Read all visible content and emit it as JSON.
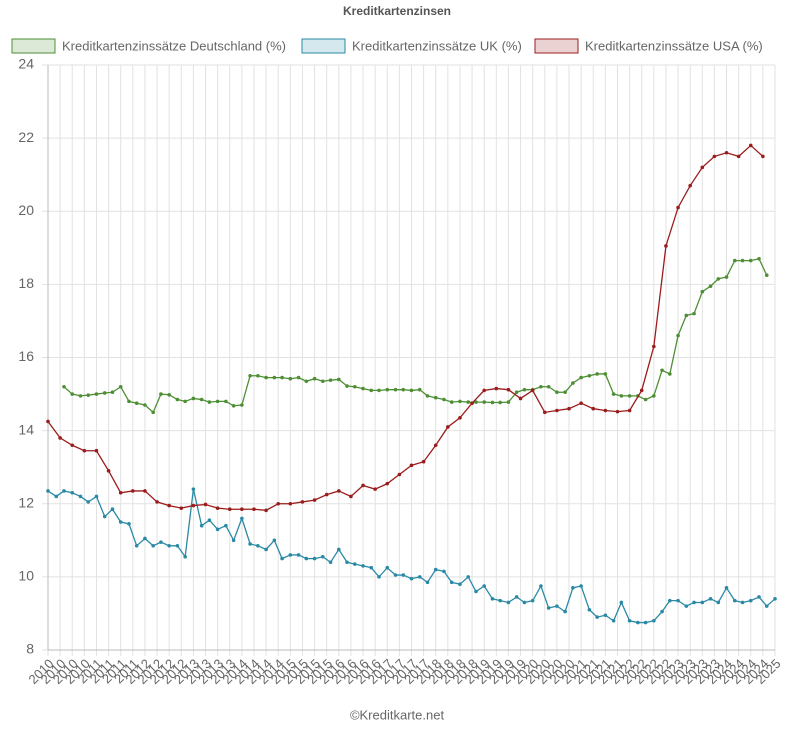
{
  "chart_data": {
    "type": "line",
    "title": "Kreditkartenzinsen",
    "source": "©Kreditkarte.net",
    "xlim": [
      2010,
      2025
    ],
    "ylim": [
      8,
      24
    ],
    "yticks": [
      8,
      10,
      12,
      14,
      16,
      18,
      20,
      22,
      24
    ],
    "grid": true,
    "legend": "top",
    "xticks": [
      2010,
      {
        "value": 2010.25,
        "label": "2010"
      },
      {
        "value": 2010.5,
        "label": "2010"
      },
      {
        "value": 2010.75,
        "label": "2010"
      },
      2011,
      {
        "value": 2011.25,
        "label": "2011"
      },
      {
        "value": 2011.5,
        "label": "2011"
      },
      {
        "value": 2011.75,
        "label": "2011"
      },
      2012,
      {
        "value": 2012.25,
        "label": "2012"
      },
      {
        "value": 2012.5,
        "label": "2012"
      },
      {
        "value": 2012.75,
        "label": "2012"
      },
      2013,
      {
        "value": 2013.25,
        "label": "2013"
      },
      {
        "value": 2013.5,
        "label": "2013"
      },
      {
        "value": 2013.75,
        "label": "2013"
      },
      2014,
      {
        "value": 2014.25,
        "label": "2014"
      },
      {
        "value": 2014.5,
        "label": "2014"
      },
      {
        "value": 2014.75,
        "label": "2014"
      },
      2015,
      {
        "value": 2015.25,
        "label": "2015"
      },
      {
        "value": 2015.5,
        "label": "2015"
      },
      {
        "value": 2015.75,
        "label": "2015"
      },
      2016,
      {
        "value": 2016.25,
        "label": "2016"
      },
      {
        "value": 2016.5,
        "label": "2016"
      },
      {
        "value": 2016.75,
        "label": "2016"
      },
      2017,
      {
        "value": 2017.25,
        "label": "2017"
      },
      {
        "value": 2017.5,
        "label": "2017"
      },
      {
        "value": 2017.75,
        "label": "2017"
      },
      2018,
      {
        "value": 2018.25,
        "label": "2018"
      },
      {
        "value": 2018.5,
        "label": "2018"
      },
      {
        "value": 2018.75,
        "label": "2018"
      },
      2019,
      {
        "value": 2019.25,
        "label": "2019"
      },
      {
        "value": 2019.5,
        "label": "2019"
      },
      {
        "value": 2019.75,
        "label": "2019"
      },
      2020,
      {
        "value": 2020.25,
        "label": "2020"
      },
      {
        "value": 2020.5,
        "label": "2020"
      },
      {
        "value": 2020.75,
        "label": "2020"
      },
      2021,
      {
        "value": 2021.25,
        "label": "2021"
      },
      {
        "value": 2021.5,
        "label": "2021"
      },
      {
        "value": 2021.75,
        "label": "2021"
      },
      2022,
      {
        "value": 2022.25,
        "label": "2022"
      },
      {
        "value": 2022.5,
        "label": "2022"
      },
      {
        "value": 2022.75,
        "label": "2022"
      },
      2023,
      {
        "value": 2023.25,
        "label": "2023"
      },
      {
        "value": 2023.5,
        "label": "2023"
      },
      {
        "value": 2023.75,
        "label": "2023"
      },
      2024,
      {
        "value": 2024.25,
        "label": "2024"
      },
      {
        "value": 2024.5,
        "label": "2024"
      },
      {
        "value": 2024.75,
        "label": "2024"
      },
      2025
    ],
    "series": [
      {
        "name": "Kreditkartenzinssätze Deutschland (%)",
        "color": "#4e8f35",
        "x": [
          2010.33,
          2010.5,
          2010.67,
          2010.83,
          2011,
          2011.17,
          2011.33,
          2011.5,
          2011.67,
          2011.83,
          2012,
          2012.17,
          2012.33,
          2012.5,
          2012.67,
          2012.83,
          2013,
          2013.17,
          2013.33,
          2013.5,
          2013.67,
          2013.83,
          2014,
          2014.17,
          2014.33,
          2014.5,
          2014.67,
          2014.83,
          2015,
          2015.17,
          2015.33,
          2015.5,
          2015.67,
          2015.83,
          2016,
          2016.17,
          2016.33,
          2016.5,
          2016.67,
          2016.83,
          2017,
          2017.17,
          2017.33,
          2017.5,
          2017.67,
          2017.83,
          2018,
          2018.17,
          2018.33,
          2018.5,
          2018.67,
          2018.83,
          2019,
          2019.17,
          2019.33,
          2019.5,
          2019.67,
          2019.83,
          2020,
          2020.17,
          2020.33,
          2020.5,
          2020.67,
          2020.83,
          2021,
          2021.17,
          2021.33,
          2021.5,
          2021.67,
          2021.83,
          2022,
          2022.17,
          2022.33,
          2022.5,
          2022.67,
          2022.83,
          2023,
          2023.17,
          2023.33,
          2023.5,
          2023.67,
          2023.83,
          2024,
          2024.17,
          2024.33,
          2024.5,
          2024.67,
          2024.83
        ],
        "values": [
          15.2,
          15.0,
          14.95,
          14.97,
          15.0,
          15.03,
          15.05,
          15.2,
          14.8,
          14.75,
          14.7,
          14.5,
          15.0,
          14.98,
          14.85,
          14.8,
          14.88,
          14.85,
          14.78,
          14.8,
          14.8,
          14.68,
          14.7,
          15.5,
          15.5,
          15.45,
          15.45,
          15.45,
          15.42,
          15.45,
          15.35,
          15.42,
          15.35,
          15.38,
          15.4,
          15.22,
          15.2,
          15.15,
          15.1,
          15.1,
          15.12,
          15.12,
          15.12,
          15.1,
          15.12,
          14.95,
          14.9,
          14.85,
          14.78,
          14.8,
          14.78,
          14.78,
          14.78,
          14.77,
          14.77,
          14.78,
          15.05,
          15.12,
          15.12,
          15.2,
          15.2,
          15.05,
          15.05,
          15.3,
          15.45,
          15.5,
          15.55,
          15.55,
          15.0,
          14.95,
          14.95,
          14.95,
          14.85,
          14.95,
          15.65,
          15.55,
          16.6,
          17.15,
          17.2,
          17.8,
          17.95,
          18.15,
          18.2,
          18.65,
          18.65,
          18.65,
          18.7,
          18.25
        ]
      },
      {
        "name": "Kreditkartenzinssätze UK (%)",
        "color": "#2a8aa5",
        "x": [
          2010,
          2010.17,
          2010.33,
          2010.5,
          2010.67,
          2010.83,
          2011,
          2011.17,
          2011.33,
          2011.5,
          2011.67,
          2011.83,
          2012,
          2012.17,
          2012.33,
          2012.5,
          2012.67,
          2012.83,
          2013,
          2013.17,
          2013.33,
          2013.5,
          2013.67,
          2013.83,
          2014,
          2014.17,
          2014.33,
          2014.5,
          2014.67,
          2014.83,
          2015,
          2015.17,
          2015.33,
          2015.5,
          2015.67,
          2015.83,
          2016,
          2016.17,
          2016.33,
          2016.5,
          2016.67,
          2016.83,
          2017,
          2017.17,
          2017.33,
          2017.5,
          2017.67,
          2017.83,
          2018,
          2018.17,
          2018.33,
          2018.5,
          2018.67,
          2018.83,
          2019,
          2019.17,
          2019.33,
          2019.5,
          2019.67,
          2019.83,
          2020,
          2020.17,
          2020.33,
          2020.5,
          2020.67,
          2020.83,
          2021,
          2021.17,
          2021.33,
          2021.5,
          2021.67,
          2021.83,
          2022,
          2022.17,
          2022.33,
          2022.5,
          2022.67,
          2022.83,
          2023,
          2023.17,
          2023.33,
          2023.5,
          2023.67,
          2023.83,
          2024,
          2024.17,
          2024.33,
          2024.5,
          2024.67,
          2024.83,
          2025
        ],
        "values": [
          12.35,
          12.2,
          12.35,
          12.3,
          12.2,
          12.05,
          12.2,
          11.65,
          11.85,
          11.5,
          11.45,
          10.85,
          11.05,
          10.85,
          10.95,
          10.85,
          10.85,
          10.55,
          12.4,
          11.4,
          11.55,
          11.3,
          11.4,
          11.0,
          11.6,
          10.9,
          10.85,
          10.75,
          11.0,
          10.5,
          10.6,
          10.6,
          10.5,
          10.5,
          10.55,
          10.4,
          10.75,
          10.4,
          10.35,
          10.3,
          10.25,
          10.0,
          10.25,
          10.05,
          10.05,
          9.95,
          10.0,
          9.85,
          10.2,
          10.15,
          9.85,
          9.8,
          10.0,
          9.6,
          9.75,
          9.4,
          9.35,
          9.3,
          9.45,
          9.3,
          9.35,
          9.75,
          9.15,
          9.2,
          9.05,
          9.7,
          9.75,
          9.1,
          8.9,
          8.95,
          8.8,
          9.3,
          8.8,
          8.75,
          8.75,
          8.8,
          9.05,
          9.35,
          9.35,
          9.2,
          9.3,
          9.3,
          9.4,
          9.3,
          9.7,
          9.35,
          9.3,
          9.35,
          9.45,
          9.2,
          9.4
        ]
      },
      {
        "name": "Kreditkartenzinssätze USA (%)",
        "color": "#9b1c1c",
        "x": [
          2010,
          2010.25,
          2010.5,
          2010.75,
          2011,
          2011.25,
          2011.5,
          2011.75,
          2012,
          2012.25,
          2012.5,
          2012.75,
          2013,
          2013.25,
          2013.5,
          2013.75,
          2014,
          2014.25,
          2014.5,
          2014.75,
          2015,
          2015.25,
          2015.5,
          2015.75,
          2016,
          2016.25,
          2016.5,
          2016.75,
          2017,
          2017.25,
          2017.5,
          2017.75,
          2018,
          2018.25,
          2018.5,
          2018.75,
          2019,
          2019.25,
          2019.5,
          2019.75,
          2020,
          2020.25,
          2020.5,
          2020.75,
          2021,
          2021.25,
          2021.5,
          2021.75,
          2022,
          2022.25,
          2022.5,
          2022.75,
          2023,
          2023.25,
          2023.5,
          2023.75,
          2024,
          2024.25,
          2024.5,
          2024.75
        ],
        "values": [
          14.25,
          13.8,
          13.6,
          13.45,
          13.45,
          12.9,
          12.3,
          12.35,
          12.35,
          12.05,
          11.95,
          11.88,
          11.95,
          11.98,
          11.88,
          11.85,
          11.85,
          11.85,
          11.82,
          12.0,
          12.0,
          12.05,
          12.1,
          12.25,
          12.35,
          12.2,
          12.5,
          12.4,
          12.55,
          12.8,
          13.05,
          13.15,
          13.6,
          14.1,
          14.35,
          14.75,
          15.1,
          15.15,
          15.12,
          14.88,
          15.1,
          14.5,
          14.55,
          14.6,
          14.75,
          14.6,
          14.55,
          14.52,
          14.55,
          15.1,
          16.3,
          19.05,
          20.1,
          20.7,
          21.2,
          21.5,
          21.6,
          21.5,
          21.8,
          21.5
        ]
      }
    ]
  }
}
